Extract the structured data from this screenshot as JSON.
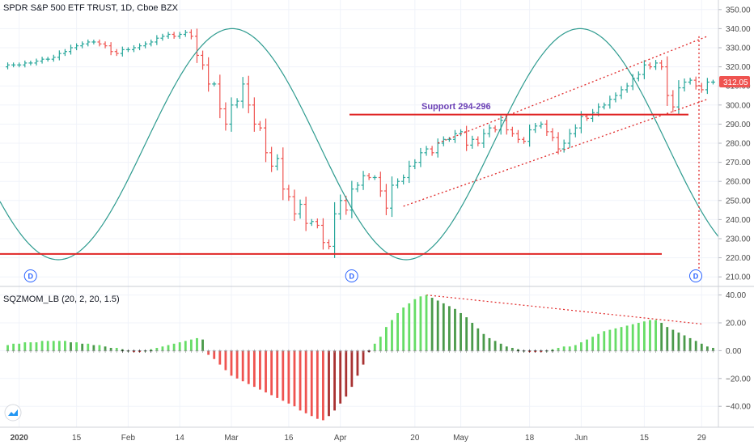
{
  "main": {
    "title": "SPDR S&P 500 ETF TRUST, 1D, Cboe BZX",
    "current_price": "312.05",
    "support_label": "Support 294-296",
    "y_ticks": [
      210,
      220,
      230,
      240,
      250,
      260,
      270,
      280,
      290,
      300,
      310,
      320,
      330,
      340,
      350
    ],
    "y_tick_labels": [
      "210.00",
      "220.00",
      "230.00",
      "240.00",
      "250.00",
      "260.00",
      "270.00",
      "280.00",
      "290.00",
      "300.00",
      "310.00",
      "320.00",
      "330.00",
      "340.00",
      "350.00"
    ],
    "div_marker_label": "D",
    "colors": {
      "up": "#26a69a",
      "down": "#ef5350",
      "price_badge": "#ef5350",
      "sine": "#2e9b8f",
      "lines": "#e02626"
    }
  },
  "oscillator": {
    "title": "SQZMOM_LB (20, 2, 20, 1.5)",
    "y_ticks": [
      -40,
      -20,
      0,
      20,
      40
    ],
    "y_tick_labels": [
      "−40.00",
      "−20.00",
      "0.00",
      "20.00",
      "40.00"
    ],
    "colors": {
      "lime": "#66dd66",
      "green": "#4a9a4a",
      "red": "#ef5350",
      "maroon": "#a83232"
    }
  },
  "time_axis": {
    "labels": [
      "2020",
      "15",
      "Feb",
      "14",
      "Mar",
      "16",
      "Apr",
      "20",
      "May",
      "18",
      "Jun",
      "15",
      "29"
    ]
  },
  "chart_data": [
    {
      "type": "ohlc",
      "title": "SPDR S&P 500 ETF TRUST, 1D, Cboe BZX",
      "ylim": [
        205,
        355
      ],
      "y_ticks": [
        210,
        220,
        230,
        240,
        250,
        260,
        270,
        280,
        290,
        300,
        310,
        320,
        330,
        340,
        350
      ],
      "x_labels": [
        "2020",
        "15",
        "Feb",
        "14",
        "Mar",
        "16",
        "Apr",
        "20",
        "May",
        "18",
        "Jun",
        "15",
        "29"
      ],
      "last_price": 312.05,
      "close_series": [
        321,
        321,
        321,
        322,
        322,
        323,
        324,
        324,
        325,
        327,
        328,
        330,
        331,
        332,
        333,
        333,
        332,
        331,
        328,
        327,
        329,
        329,
        330,
        331,
        332,
        333,
        335,
        336,
        337,
        336,
        337,
        338,
        336,
        326,
        321,
        311,
        311,
        298,
        290,
        300,
        302,
        311,
        300,
        290,
        288,
        275,
        268,
        272,
        256,
        252,
        243,
        248,
        238,
        239,
        237,
        228,
        226,
        243,
        250,
        245,
        256,
        258,
        263,
        262,
        262,
        255,
        246,
        258,
        260,
        262,
        268,
        270,
        275,
        277,
        275,
        280,
        282,
        282,
        285,
        286,
        279,
        282,
        280,
        285,
        288,
        287,
        292,
        287,
        285,
        282,
        281,
        287,
        289,
        290,
        286,
        283,
        277,
        280,
        285,
        288,
        294,
        293,
        296,
        299,
        300,
        303,
        305,
        308,
        310,
        314,
        316,
        321,
        320,
        322,
        320,
        305,
        299,
        309,
        312,
        313,
        310,
        308,
        312,
        312
      ],
      "annotations": [
        {
          "kind": "horizontal",
          "label": "Support 294-296",
          "value": 295
        },
        {
          "kind": "horizontal",
          "value": 222
        },
        {
          "kind": "channel",
          "upper": [
            [
              75,
              280
            ],
            [
              122,
              336
            ]
          ],
          "lower": [
            [
              69,
              247
            ],
            [
              122,
              303
            ]
          ]
        }
      ],
      "cycle": {
        "low": 219,
        "high": 340
      }
    },
    {
      "type": "histogram",
      "title": "SQZMOM_LB (20, 2, 20, 1.5)",
      "ylim": [
        -55,
        45
      ],
      "y_ticks": [
        -40,
        -20,
        0,
        20,
        40
      ],
      "values": [
        4,
        5,
        5,
        6,
        6,
        6,
        7,
        7,
        7,
        7,
        7,
        6,
        6,
        5,
        5,
        4,
        4,
        3,
        2,
        2,
        1,
        0,
        -1,
        -1,
        0,
        1,
        2,
        3,
        4,
        5,
        6,
        7,
        8,
        9,
        8,
        -3,
        -6,
        -10,
        -14,
        -18,
        -20,
        -22,
        -24,
        -26,
        -28,
        -30,
        -32,
        -34,
        -36,
        -38,
        -40,
        -43,
        -45,
        -47,
        -49,
        -50,
        -47,
        -43,
        -38,
        -33,
        -26,
        -18,
        -10,
        -1,
        5,
        10,
        17,
        22,
        27,
        31,
        34,
        37,
        39,
        40,
        38,
        36,
        34,
        32,
        30,
        27,
        24,
        20,
        16,
        12,
        9,
        7,
        5,
        3,
        2,
        1,
        0,
        -1,
        -1,
        -1,
        0,
        1,
        2,
        3,
        3,
        4,
        6,
        8,
        10,
        12,
        14,
        15,
        16,
        17,
        18,
        19,
        20,
        21,
        22,
        22,
        20,
        17,
        15,
        13,
        11,
        9,
        7,
        5,
        3,
        2
      ]
    }
  ]
}
